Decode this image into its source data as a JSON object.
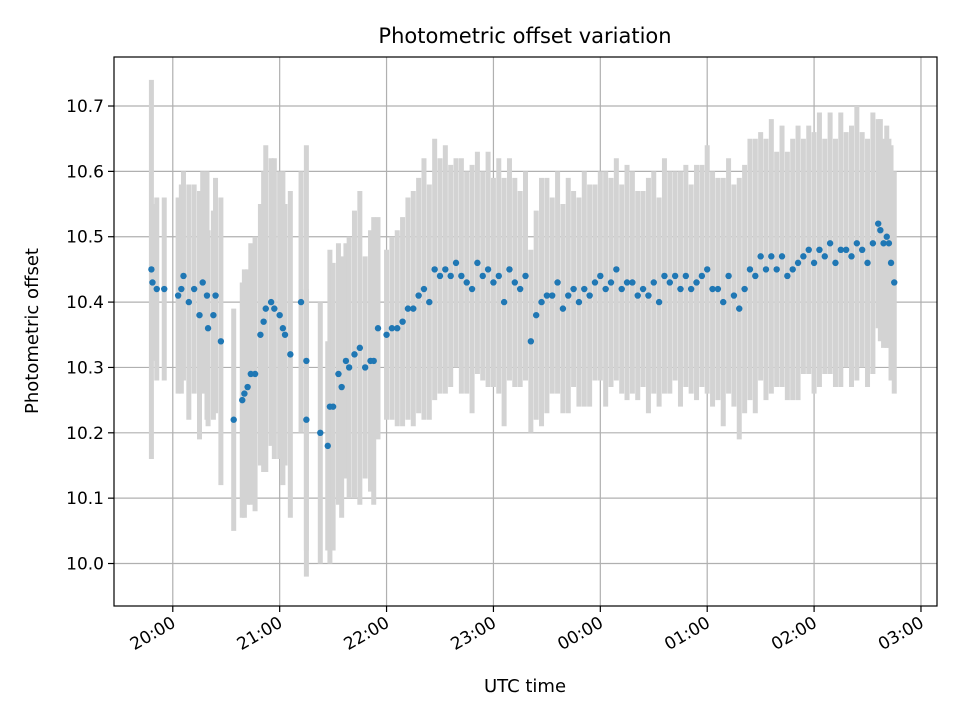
{
  "chart_data": {
    "type": "scatter",
    "title": "Photometric offset variation",
    "xlabel": "UTC time",
    "ylabel": "Photometric offset",
    "x_unit": "hours",
    "xlim": [
      -0.55,
      7.15
    ],
    "ylim": [
      9.935,
      10.775
    ],
    "xticks": [
      {
        "value": 0,
        "label": "20:00"
      },
      {
        "value": 1,
        "label": "21:00"
      },
      {
        "value": 2,
        "label": "22:00"
      },
      {
        "value": 3,
        "label": "23:00"
      },
      {
        "value": 4,
        "label": "00:00"
      },
      {
        "value": 5,
        "label": "01:00"
      },
      {
        "value": 6,
        "label": "02:00"
      },
      {
        "value": 7,
        "label": "03:00"
      }
    ],
    "yticks": [
      {
        "value": 10.0,
        "label": "10.0"
      },
      {
        "value": 10.1,
        "label": "10.1"
      },
      {
        "value": 10.2,
        "label": "10.2"
      },
      {
        "value": 10.3,
        "label": "10.3"
      },
      {
        "value": 10.4,
        "label": "10.4"
      },
      {
        "value": 10.5,
        "label": "10.5"
      },
      {
        "value": 10.6,
        "label": "10.6"
      },
      {
        "value": 10.7,
        "label": "10.7"
      }
    ],
    "grid": true,
    "point_color": "#1f77b4",
    "errorbar_color": "#d3d3d3",
    "series": [
      {
        "points": [
          [
            -0.2,
            10.45,
            0.29
          ],
          [
            -0.19,
            10.43,
            0.12
          ],
          [
            -0.15,
            10.42,
            0.14
          ],
          [
            -0.08,
            10.42,
            0.14
          ],
          [
            0.05,
            10.41,
            0.15
          ],
          [
            0.08,
            10.42,
            0.16
          ],
          [
            0.1,
            10.44,
            0.16
          ],
          [
            0.15,
            10.4,
            0.18
          ],
          [
            0.2,
            10.42,
            0.16
          ],
          [
            0.25,
            10.38,
            0.19
          ],
          [
            0.28,
            10.43,
            0.17
          ],
          [
            0.32,
            10.41,
            0.19
          ],
          [
            0.33,
            10.36,
            0.15
          ],
          [
            0.38,
            10.38,
            0.16
          ],
          [
            0.4,
            10.41,
            0.18
          ],
          [
            0.45,
            10.34,
            0.22
          ],
          [
            0.57,
            10.22,
            0.17
          ],
          [
            0.65,
            10.25,
            0.18
          ],
          [
            0.67,
            10.26,
            0.19
          ],
          [
            0.7,
            10.27,
            0.18
          ],
          [
            0.73,
            10.29,
            0.2
          ],
          [
            0.77,
            10.29,
            0.21
          ],
          [
            0.82,
            10.35,
            0.2
          ],
          [
            0.85,
            10.37,
            0.23
          ],
          [
            0.87,
            10.39,
            0.25
          ],
          [
            0.92,
            10.4,
            0.22
          ],
          [
            0.95,
            10.39,
            0.23
          ],
          [
            1.0,
            10.38,
            0.22
          ],
          [
            1.03,
            10.36,
            0.24
          ],
          [
            1.05,
            10.35,
            0.2
          ],
          [
            1.1,
            10.32,
            0.25
          ],
          [
            1.2,
            10.4,
            0.2
          ],
          [
            1.25,
            10.31,
            0.33
          ],
          [
            1.25,
            10.22,
            0.2
          ],
          [
            1.38,
            10.2,
            0.2
          ],
          [
            1.45,
            10.18,
            0.16
          ],
          [
            1.47,
            10.24,
            0.24
          ],
          [
            1.5,
            10.24,
            0.22
          ],
          [
            1.55,
            10.29,
            0.2
          ],
          [
            1.58,
            10.27,
            0.2
          ],
          [
            1.62,
            10.31,
            0.18
          ],
          [
            1.65,
            10.3,
            0.2
          ],
          [
            1.7,
            10.32,
            0.22
          ],
          [
            1.75,
            10.33,
            0.24
          ],
          [
            1.8,
            10.3,
            0.17
          ],
          [
            1.85,
            10.31,
            0.2
          ],
          [
            1.88,
            10.31,
            0.22
          ],
          [
            1.92,
            10.36,
            0.17
          ],
          [
            2.0,
            10.35,
            0.13
          ],
          [
            2.05,
            10.36,
            0.14
          ],
          [
            2.1,
            10.36,
            0.15
          ],
          [
            2.15,
            10.37,
            0.16
          ],
          [
            2.2,
            10.39,
            0.17
          ],
          [
            2.25,
            10.39,
            0.18
          ],
          [
            2.3,
            10.41,
            0.18
          ],
          [
            2.35,
            10.42,
            0.2
          ],
          [
            2.4,
            10.4,
            0.18
          ],
          [
            2.45,
            10.45,
            0.2
          ],
          [
            2.5,
            10.44,
            0.18
          ],
          [
            2.55,
            10.45,
            0.19
          ],
          [
            2.6,
            10.44,
            0.17
          ],
          [
            2.65,
            10.46,
            0.16
          ],
          [
            2.7,
            10.44,
            0.18
          ],
          [
            2.75,
            10.43,
            0.17
          ],
          [
            2.8,
            10.42,
            0.19
          ],
          [
            2.85,
            10.46,
            0.17
          ],
          [
            2.9,
            10.44,
            0.16
          ],
          [
            2.95,
            10.45,
            0.18
          ],
          [
            3.0,
            10.43,
            0.16
          ],
          [
            3.05,
            10.44,
            0.18
          ],
          [
            3.1,
            10.4,
            0.19
          ],
          [
            3.15,
            10.45,
            0.17
          ],
          [
            3.2,
            10.43,
            0.16
          ],
          [
            3.25,
            10.42,
            0.15
          ],
          [
            3.3,
            10.44,
            0.16
          ],
          [
            3.35,
            10.34,
            0.14
          ],
          [
            3.4,
            10.38,
            0.16
          ],
          [
            3.45,
            10.4,
            0.19
          ],
          [
            3.5,
            10.41,
            0.18
          ],
          [
            3.55,
            10.41,
            0.15
          ],
          [
            3.6,
            10.43,
            0.17
          ],
          [
            3.65,
            10.39,
            0.16
          ],
          [
            3.7,
            10.41,
            0.18
          ],
          [
            3.75,
            10.42,
            0.15
          ],
          [
            3.8,
            10.4,
            0.16
          ],
          [
            3.85,
            10.42,
            0.18
          ],
          [
            3.9,
            10.41,
            0.17
          ],
          [
            3.95,
            10.43,
            0.15
          ],
          [
            4.0,
            10.44,
            0.16
          ],
          [
            4.05,
            10.42,
            0.18
          ],
          [
            4.1,
            10.43,
            0.16
          ],
          [
            4.15,
            10.45,
            0.17
          ],
          [
            4.2,
            10.42,
            0.16
          ],
          [
            4.25,
            10.43,
            0.18
          ],
          [
            4.3,
            10.43,
            0.17
          ],
          [
            4.35,
            10.41,
            0.16
          ],
          [
            4.4,
            10.42,
            0.15
          ],
          [
            4.45,
            10.41,
            0.18
          ],
          [
            4.5,
            10.43,
            0.17
          ],
          [
            4.55,
            10.4,
            0.16
          ],
          [
            4.6,
            10.44,
            0.18
          ],
          [
            4.65,
            10.43,
            0.17
          ],
          [
            4.7,
            10.44,
            0.16
          ],
          [
            4.75,
            10.42,
            0.18
          ],
          [
            4.8,
            10.44,
            0.17
          ],
          [
            4.85,
            10.42,
            0.16
          ],
          [
            4.9,
            10.43,
            0.18
          ],
          [
            4.95,
            10.44,
            0.17
          ],
          [
            5.0,
            10.45,
            0.19
          ],
          [
            5.05,
            10.42,
            0.18
          ],
          [
            5.1,
            10.42,
            0.17
          ],
          [
            5.15,
            10.4,
            0.19
          ],
          [
            5.2,
            10.44,
            0.18
          ],
          [
            5.25,
            10.41,
            0.17
          ],
          [
            5.3,
            10.39,
            0.2
          ],
          [
            5.35,
            10.42,
            0.19
          ],
          [
            5.4,
            10.45,
            0.2
          ],
          [
            5.45,
            10.44,
            0.21
          ],
          [
            5.5,
            10.47,
            0.19
          ],
          [
            5.55,
            10.45,
            0.2
          ],
          [
            5.6,
            10.47,
            0.21
          ],
          [
            5.65,
            10.45,
            0.18
          ],
          [
            5.7,
            10.47,
            0.2
          ],
          [
            5.75,
            10.44,
            0.19
          ],
          [
            5.8,
            10.45,
            0.2
          ],
          [
            5.85,
            10.46,
            0.21
          ],
          [
            5.9,
            10.47,
            0.18
          ],
          [
            5.95,
            10.48,
            0.19
          ],
          [
            6.0,
            10.46,
            0.2
          ],
          [
            6.05,
            10.48,
            0.21
          ],
          [
            6.1,
            10.47,
            0.18
          ],
          [
            6.15,
            10.49,
            0.2
          ],
          [
            6.2,
            10.46,
            0.19
          ],
          [
            6.25,
            10.48,
            0.21
          ],
          [
            6.3,
            10.48,
            0.18
          ],
          [
            6.35,
            10.47,
            0.2
          ],
          [
            6.4,
            10.49,
            0.21
          ],
          [
            6.45,
            10.48,
            0.18
          ],
          [
            6.5,
            10.46,
            0.19
          ],
          [
            6.55,
            10.49,
            0.2
          ],
          [
            6.6,
            10.52,
            0.16
          ],
          [
            6.62,
            10.51,
            0.17
          ],
          [
            6.65,
            10.49,
            0.16
          ],
          [
            6.68,
            10.5,
            0.17
          ],
          [
            6.7,
            10.49,
            0.16
          ],
          [
            6.72,
            10.46,
            0.18
          ],
          [
            6.75,
            10.43,
            0.17
          ]
        ]
      }
    ]
  }
}
